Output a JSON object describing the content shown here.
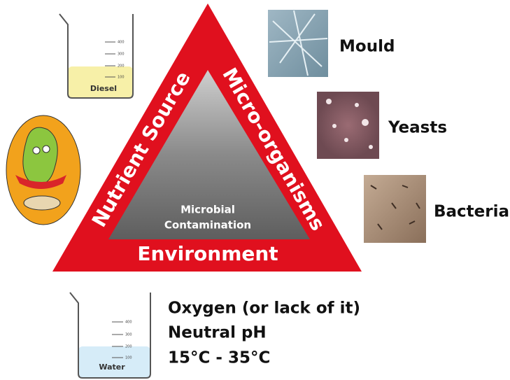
{
  "triangle": {
    "sides": {
      "left": "Nutrient Source",
      "right": "Micro-organisms",
      "bottom": "Environment"
    },
    "center": [
      "Microbial",
      "Contamination"
    ]
  },
  "microorganisms": [
    {
      "label": "Mould"
    },
    {
      "label": "Yeasts"
    },
    {
      "label": "Bacteria"
    }
  ],
  "beakers": [
    {
      "label": "Diesel",
      "scale": [
        400,
        300,
        200,
        100
      ]
    },
    {
      "label": "Water",
      "scale": [
        400,
        300,
        200,
        100
      ]
    }
  ],
  "conditions": [
    "Oxygen (or lack of it)",
    "Neutral pH",
    "15°C - 35°C"
  ]
}
